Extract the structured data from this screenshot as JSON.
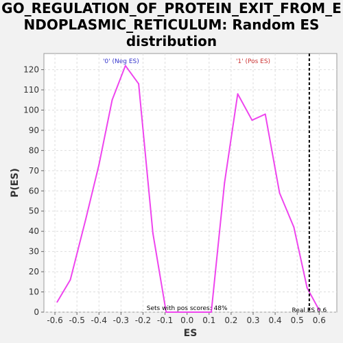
{
  "chart_data": {
    "type": "line",
    "title_lines": [
      "GO_REGULATION_OF_PROTEIN_EXIT_FROM_E",
      "NDOPLASMIC_RETICULUM: Random ES",
      "distribution"
    ],
    "xlabel": "ES",
    "ylabel": "P(ES)",
    "xlim": [
      -0.65,
      0.68
    ],
    "ylim": [
      0,
      128
    ],
    "xticks": [
      -0.6,
      -0.5,
      -0.4,
      -0.3,
      -0.2,
      -0.1,
      0.0,
      0.1,
      0.2,
      0.3,
      0.4,
      0.5,
      0.6
    ],
    "xtick_labels": [
      "-0.6",
      "-0.5",
      "-0.4",
      "-0.3",
      "-0.2",
      "-0.1",
      "0.0",
      "0.1",
      "0.2",
      "0.3",
      "0.4",
      "0.5",
      "0.6"
    ],
    "yticks": [
      0,
      10,
      20,
      30,
      40,
      50,
      60,
      70,
      80,
      90,
      100,
      110,
      120
    ],
    "ytick_labels": [
      "0",
      "10",
      "20",
      "30",
      "40",
      "50",
      "60",
      "70",
      "80",
      "90",
      "100",
      "110",
      "120"
    ],
    "grid": true,
    "series": [
      {
        "color": "#ee44ee",
        "x": [
          -0.59,
          -0.53,
          -0.46,
          -0.4,
          -0.34,
          -0.28,
          -0.22,
          -0.155,
          -0.095,
          0.11,
          0.17,
          0.23,
          0.295,
          0.355,
          0.42,
          0.485,
          0.545,
          0.6
        ],
        "y": [
          5,
          16,
          46,
          73,
          105,
          122,
          113,
          39,
          0,
          0,
          64,
          108,
          95,
          98,
          59,
          42,
          12,
          1
        ]
      }
    ],
    "real_es_line": {
      "x": 0.555,
      "color": "#000000",
      "style": "dashed"
    },
    "annotations": {
      "neg_label": "'0' (Neg ES)",
      "neg_color": "#3333cc",
      "pos_label": "'1' (Pos ES)",
      "pos_color": "#cc3333",
      "pos_scores": "Sets with pos scores: 48%",
      "real_es": "Real ES 0.6"
    }
  }
}
